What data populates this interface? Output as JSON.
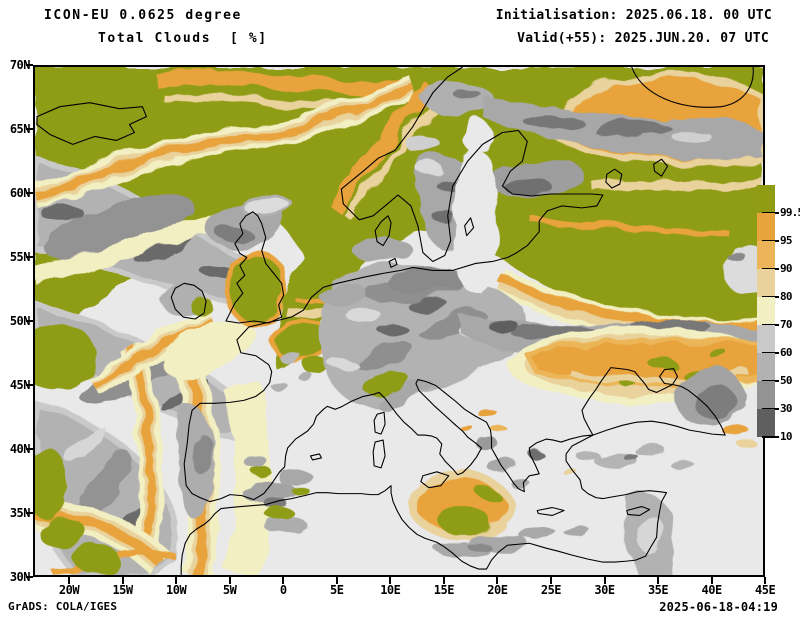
{
  "header": {
    "model_line": "ICON-EU 0.0625 degree",
    "variable_line": "Total Clouds  [ %]",
    "init_line": "Initialisation: 2025.06.18. 00 UTC",
    "valid_line": "Valid(+55): 2025.JUN.20. 07 UTC"
  },
  "footer": {
    "grads_credit": "GrADS: COLA/IGES",
    "creation_timestamp": "2025-06-18-04:19"
  },
  "axes": {
    "lat_labels": [
      "70N",
      "65N",
      "60N",
      "55N",
      "50N",
      "45N",
      "40N",
      "35N",
      "30N"
    ],
    "lon_labels": [
      "20W",
      "15W",
      "10W",
      "5W",
      "0",
      "5E",
      "10E",
      "15E",
      "20E",
      "25E",
      "30E",
      "35E",
      "40E",
      "45E"
    ]
  },
  "legend": {
    "units": "%",
    "segments": [
      {
        "label": "99.5",
        "color": "#8f9c14"
      },
      {
        "label": "95",
        "color": "#e8a33c"
      },
      {
        "label": "90",
        "color": "#ecb658"
      },
      {
        "label": "80",
        "color": "#e9d29c"
      },
      {
        "label": "70",
        "color": "#f2efc3"
      },
      {
        "label": "60",
        "color": "#c9c9c9"
      },
      {
        "label": "50",
        "color": "#b2b2b2"
      },
      {
        "label": "30",
        "color": "#939393"
      },
      {
        "label": "10",
        "color": "#5f5f5f"
      }
    ]
  },
  "map": {
    "background_color": "#e9e9e9",
    "coastline_color": "#000000",
    "overcast_color": "#8f9c14"
  }
}
